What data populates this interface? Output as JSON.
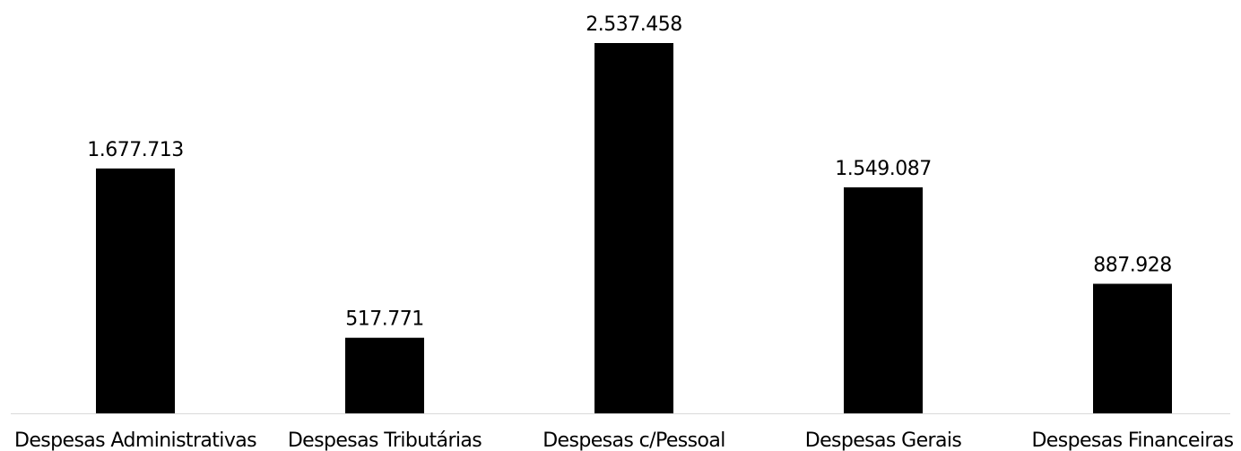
{
  "chart_data": {
    "type": "bar",
    "title": "",
    "xlabel": "",
    "ylabel": "",
    "categories": [
      "Despesas Administrativas",
      "Despesas Tributárias",
      "Despesas c/Pessoal",
      "Despesas Gerais",
      "Despesas Financeiras"
    ],
    "values": [
      1677713,
      517771,
      2537458,
      1549087,
      887928
    ],
    "value_labels": [
      "1.677.713",
      "517.771",
      "2.537.458",
      "1.549.087",
      "887.928"
    ],
    "ylim": [
      0,
      2537458
    ],
    "grid": false,
    "legend": "none",
    "bar_color": "#000000"
  }
}
